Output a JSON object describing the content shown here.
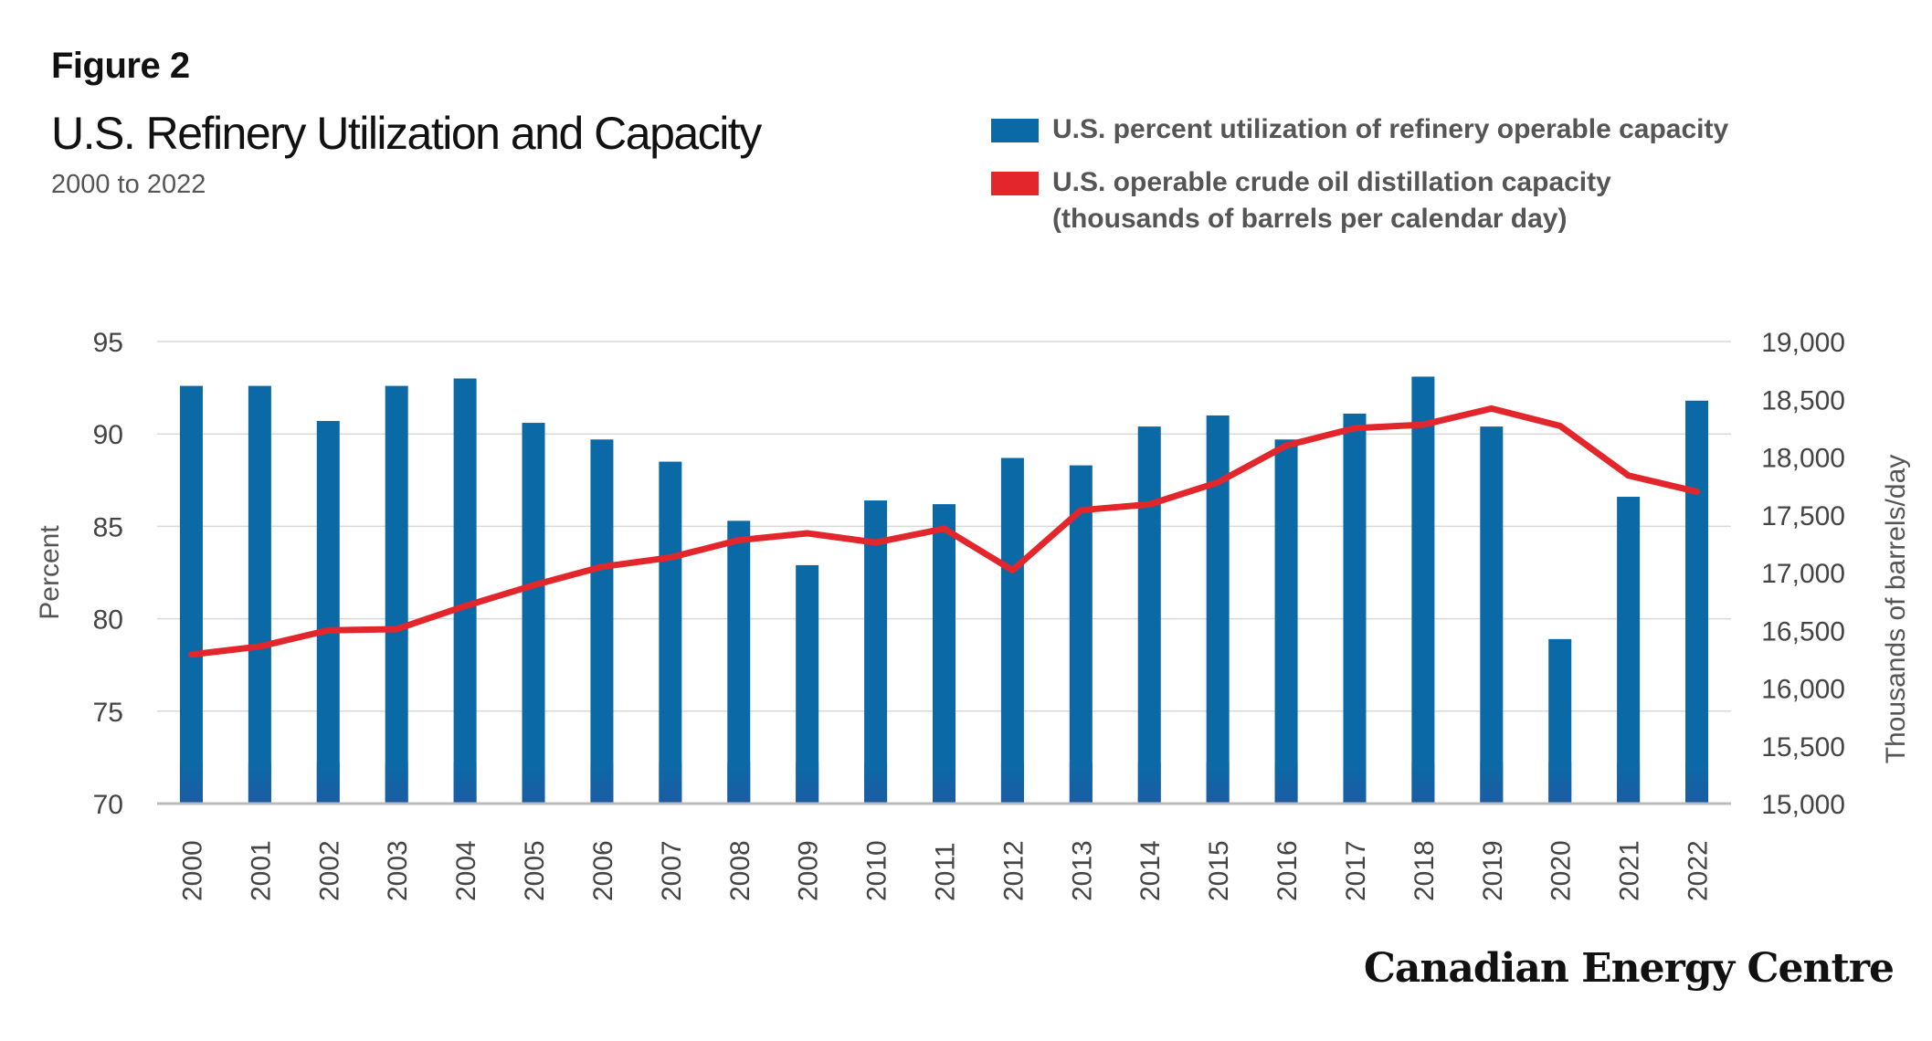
{
  "figure_label": "Figure 2",
  "title": "U.S. Refinery Utilization and Capacity",
  "subtitle": "2000 to 2022",
  "brand": "Canadian Energy Centre",
  "colors": {
    "bar": "#0b6aa6",
    "bar_base": "#1d5aa3",
    "line": "#e3262b",
    "grid": "#d9d9d9",
    "axis": "#bbbbbb"
  },
  "legend": {
    "bar_label": "U.S. percent utilization of refinery operable capacity",
    "line_label_1": "U.S. operable crude oil distillation capacity",
    "line_label_2": "(thousands of barrels per calendar day)"
  },
  "chart_data": {
    "type": "bar",
    "categories": [
      "2000",
      "2001",
      "2002",
      "2003",
      "2004",
      "2005",
      "2006",
      "2007",
      "2008",
      "2009",
      "2010",
      "2011",
      "2012",
      "2013",
      "2014",
      "2015",
      "2016",
      "2017",
      "2018",
      "2019",
      "2020",
      "2021",
      "2022"
    ],
    "series": [
      {
        "name": "U.S. percent utilization of refinery operable capacity",
        "type": "bar",
        "axis": "left",
        "values": [
          92.6,
          92.6,
          90.7,
          92.6,
          93.0,
          90.6,
          89.7,
          88.5,
          85.3,
          82.9,
          86.4,
          86.2,
          88.7,
          88.3,
          90.4,
          91.0,
          89.7,
          91.1,
          93.1,
          90.4,
          78.9,
          86.6,
          91.8
        ]
      },
      {
        "name": "U.S. operable crude oil distillation capacity (thousands of barrels per calendar day)",
        "type": "line",
        "axis": "right",
        "values": [
          16290,
          16360,
          16500,
          16510,
          16710,
          16890,
          17050,
          17130,
          17280,
          17340,
          17260,
          17380,
          17020,
          17540,
          17590,
          17780,
          18100,
          18250,
          18280,
          18420,
          18270,
          17840,
          17700
        ]
      }
    ],
    "ylabel": "Percent",
    "ylim": [
      70,
      95
    ],
    "yticks": [
      "70",
      "75",
      "80",
      "85",
      "90",
      "95"
    ],
    "y2label": "Thousands of barrels/day",
    "y2lim": [
      15000,
      19000
    ],
    "y2ticks": [
      "15,000",
      "15,500",
      "16,000",
      "16,500",
      "17,000",
      "17,500",
      "18,000",
      "18,500",
      "19,000"
    ],
    "grid": true,
    "legend_position": "top-right"
  }
}
